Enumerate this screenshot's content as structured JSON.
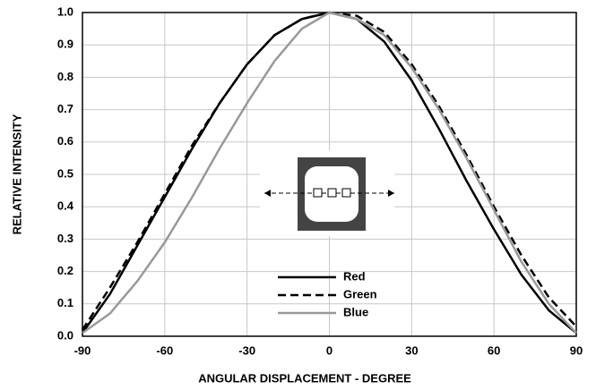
{
  "chart_data": {
    "type": "line",
    "x_label": "ANGULAR DISPLACEMENT - DEGREE",
    "y_label": "RELATIVE INTENSITY",
    "x": [
      -90,
      -80,
      -70,
      -60,
      -50,
      -40,
      -30,
      -20,
      -10,
      0,
      10,
      20,
      30,
      40,
      50,
      60,
      70,
      80,
      90
    ],
    "series": [
      {
        "name": "Red",
        "color": "#000000",
        "dashed": false,
        "values": [
          0.01,
          0.13,
          0.28,
          0.43,
          0.58,
          0.72,
          0.84,
          0.93,
          0.98,
          1.0,
          0.98,
          0.91,
          0.79,
          0.64,
          0.48,
          0.33,
          0.19,
          0.08,
          0.01
        ]
      },
      {
        "name": "Green",
        "color": "#000000",
        "dashed": true,
        "values": [
          0.02,
          0.15,
          0.29,
          0.44,
          0.59,
          0.72,
          0.84,
          0.93,
          0.98,
          1.0,
          0.99,
          0.94,
          0.84,
          0.71,
          0.56,
          0.4,
          0.25,
          0.12,
          0.03
        ]
      },
      {
        "name": "Blue",
        "color": "#999999",
        "dashed": false,
        "values": [
          0.01,
          0.07,
          0.17,
          0.29,
          0.43,
          0.58,
          0.72,
          0.85,
          0.95,
          1.0,
          0.98,
          0.93,
          0.83,
          0.7,
          0.55,
          0.39,
          0.23,
          0.1,
          0.01
        ]
      }
    ],
    "xlim": [
      -90,
      90
    ],
    "xticks": [
      -90,
      -60,
      -30,
      0,
      30,
      60,
      90
    ],
    "ylim": [
      0,
      1
    ],
    "yticks": [
      {
        "value": 0,
        "label": "0.0"
      },
      0.1,
      0.2,
      0.3,
      0.4,
      0.5,
      0.6,
      0.7,
      0.8,
      0.9,
      {
        "value": 1,
        "label": "1.0"
      }
    ],
    "grid": true
  }
}
